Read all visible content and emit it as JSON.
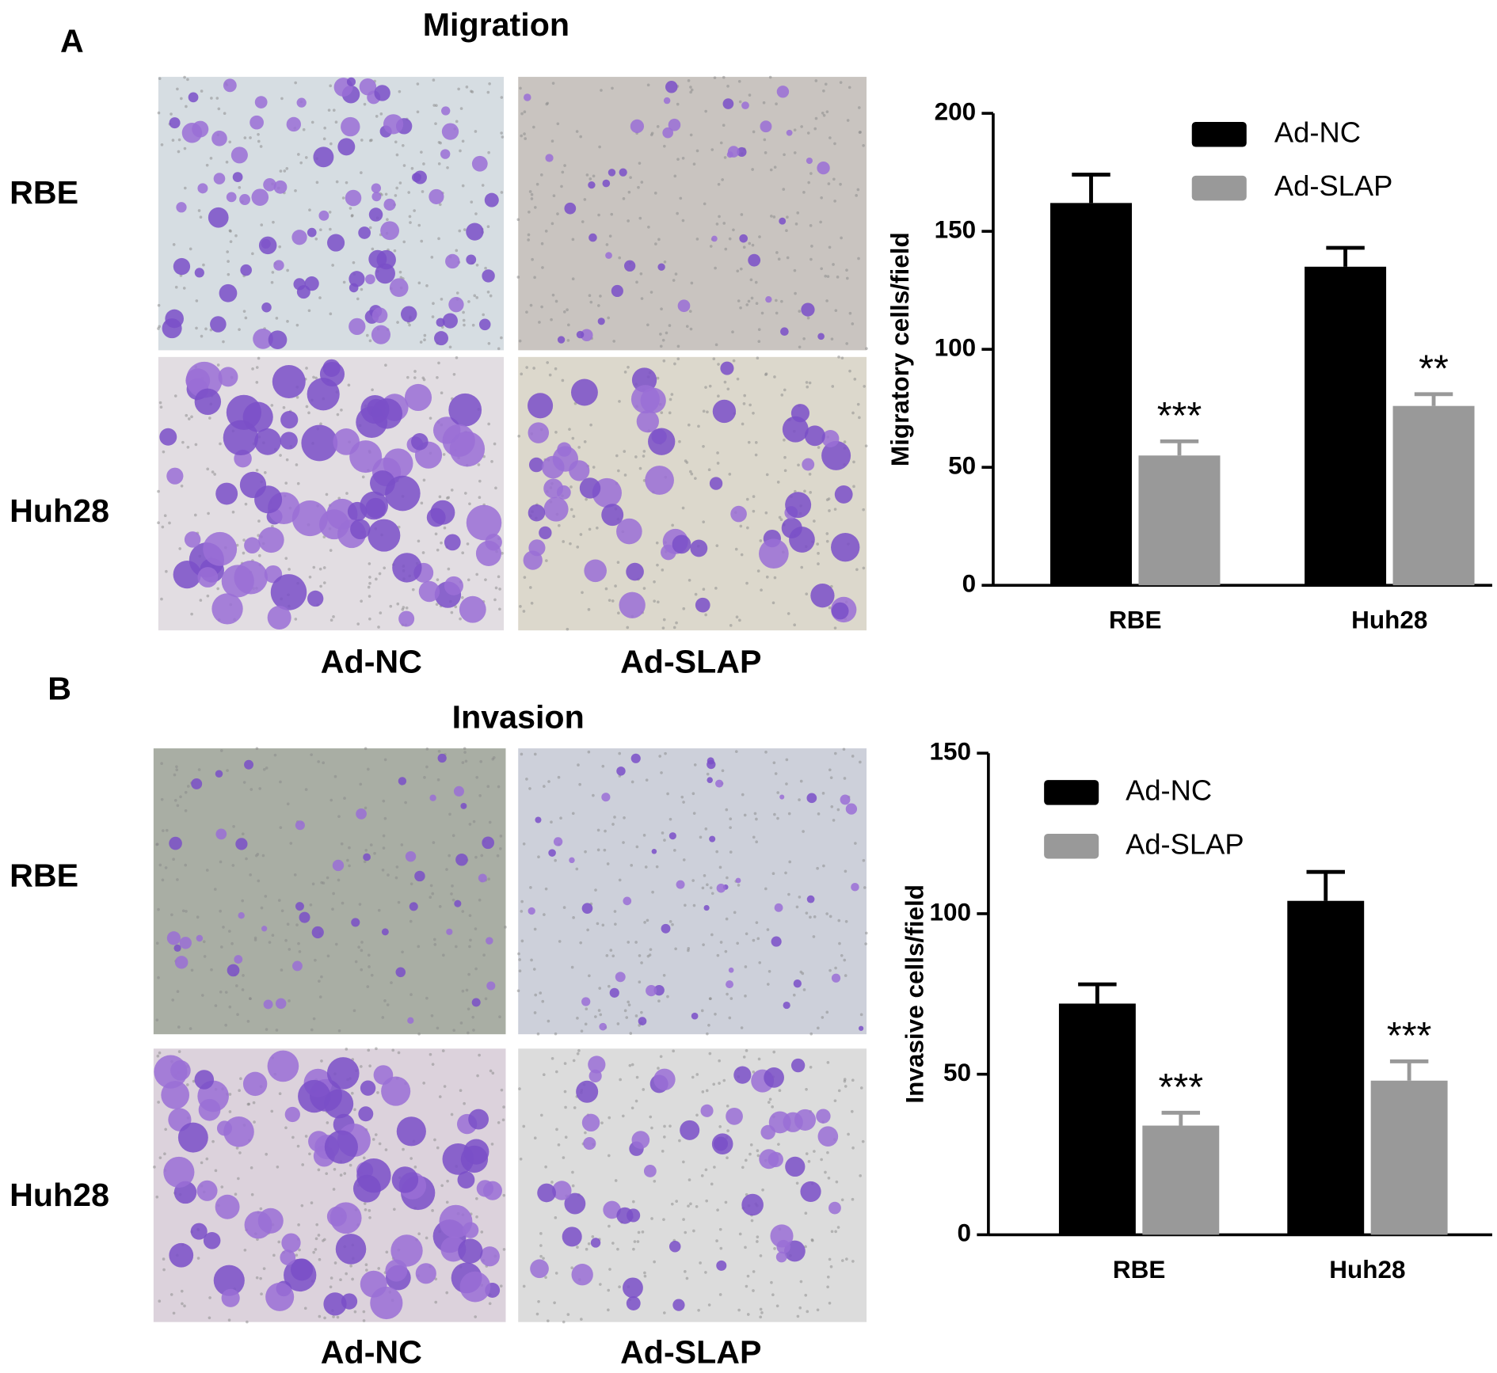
{
  "panels": [
    {
      "letter": "A",
      "title": "Migration",
      "rows": [
        "RBE",
        "Huh28"
      ],
      "columns": [
        "Ad-NC",
        "Ad-SLAP"
      ]
    },
    {
      "letter": "B",
      "title": "Invasion",
      "rows": [
        "RBE",
        "Huh28"
      ],
      "columns": [
        "Ad-NC",
        "Ad-SLAP"
      ]
    }
  ],
  "chart_data": [
    {
      "type": "bar",
      "ylabel": "Migratory cells/field",
      "categories": [
        "RBE",
        "Huh28"
      ],
      "series": [
        {
          "name": "Ad-NC",
          "color": "#000000",
          "values": [
            162,
            135
          ],
          "errors": [
            12,
            8
          ]
        },
        {
          "name": "Ad-SLAP",
          "color": "#999999",
          "values": [
            55,
            76
          ],
          "errors": [
            6,
            5
          ],
          "significance": [
            "***",
            "**"
          ]
        }
      ],
      "ylim": [
        0,
        200
      ],
      "yticks": [
        0,
        50,
        100,
        150,
        200
      ],
      "legend": "upper right"
    },
    {
      "type": "bar",
      "ylabel": "Invasive cells/field",
      "categories": [
        "RBE",
        "Huh28"
      ],
      "series": [
        {
          "name": "Ad-NC",
          "color": "#000000",
          "values": [
            72,
            104
          ],
          "errors": [
            6,
            9
          ]
        },
        {
          "name": "Ad-SLAP",
          "color": "#999999",
          "values": [
            34,
            48
          ],
          "errors": [
            4,
            6
          ],
          "significance": [
            "***",
            "***"
          ]
        }
      ],
      "ylim": [
        0,
        150
      ],
      "yticks": [
        0,
        50,
        100,
        150
      ],
      "legend": "upper left"
    }
  ]
}
